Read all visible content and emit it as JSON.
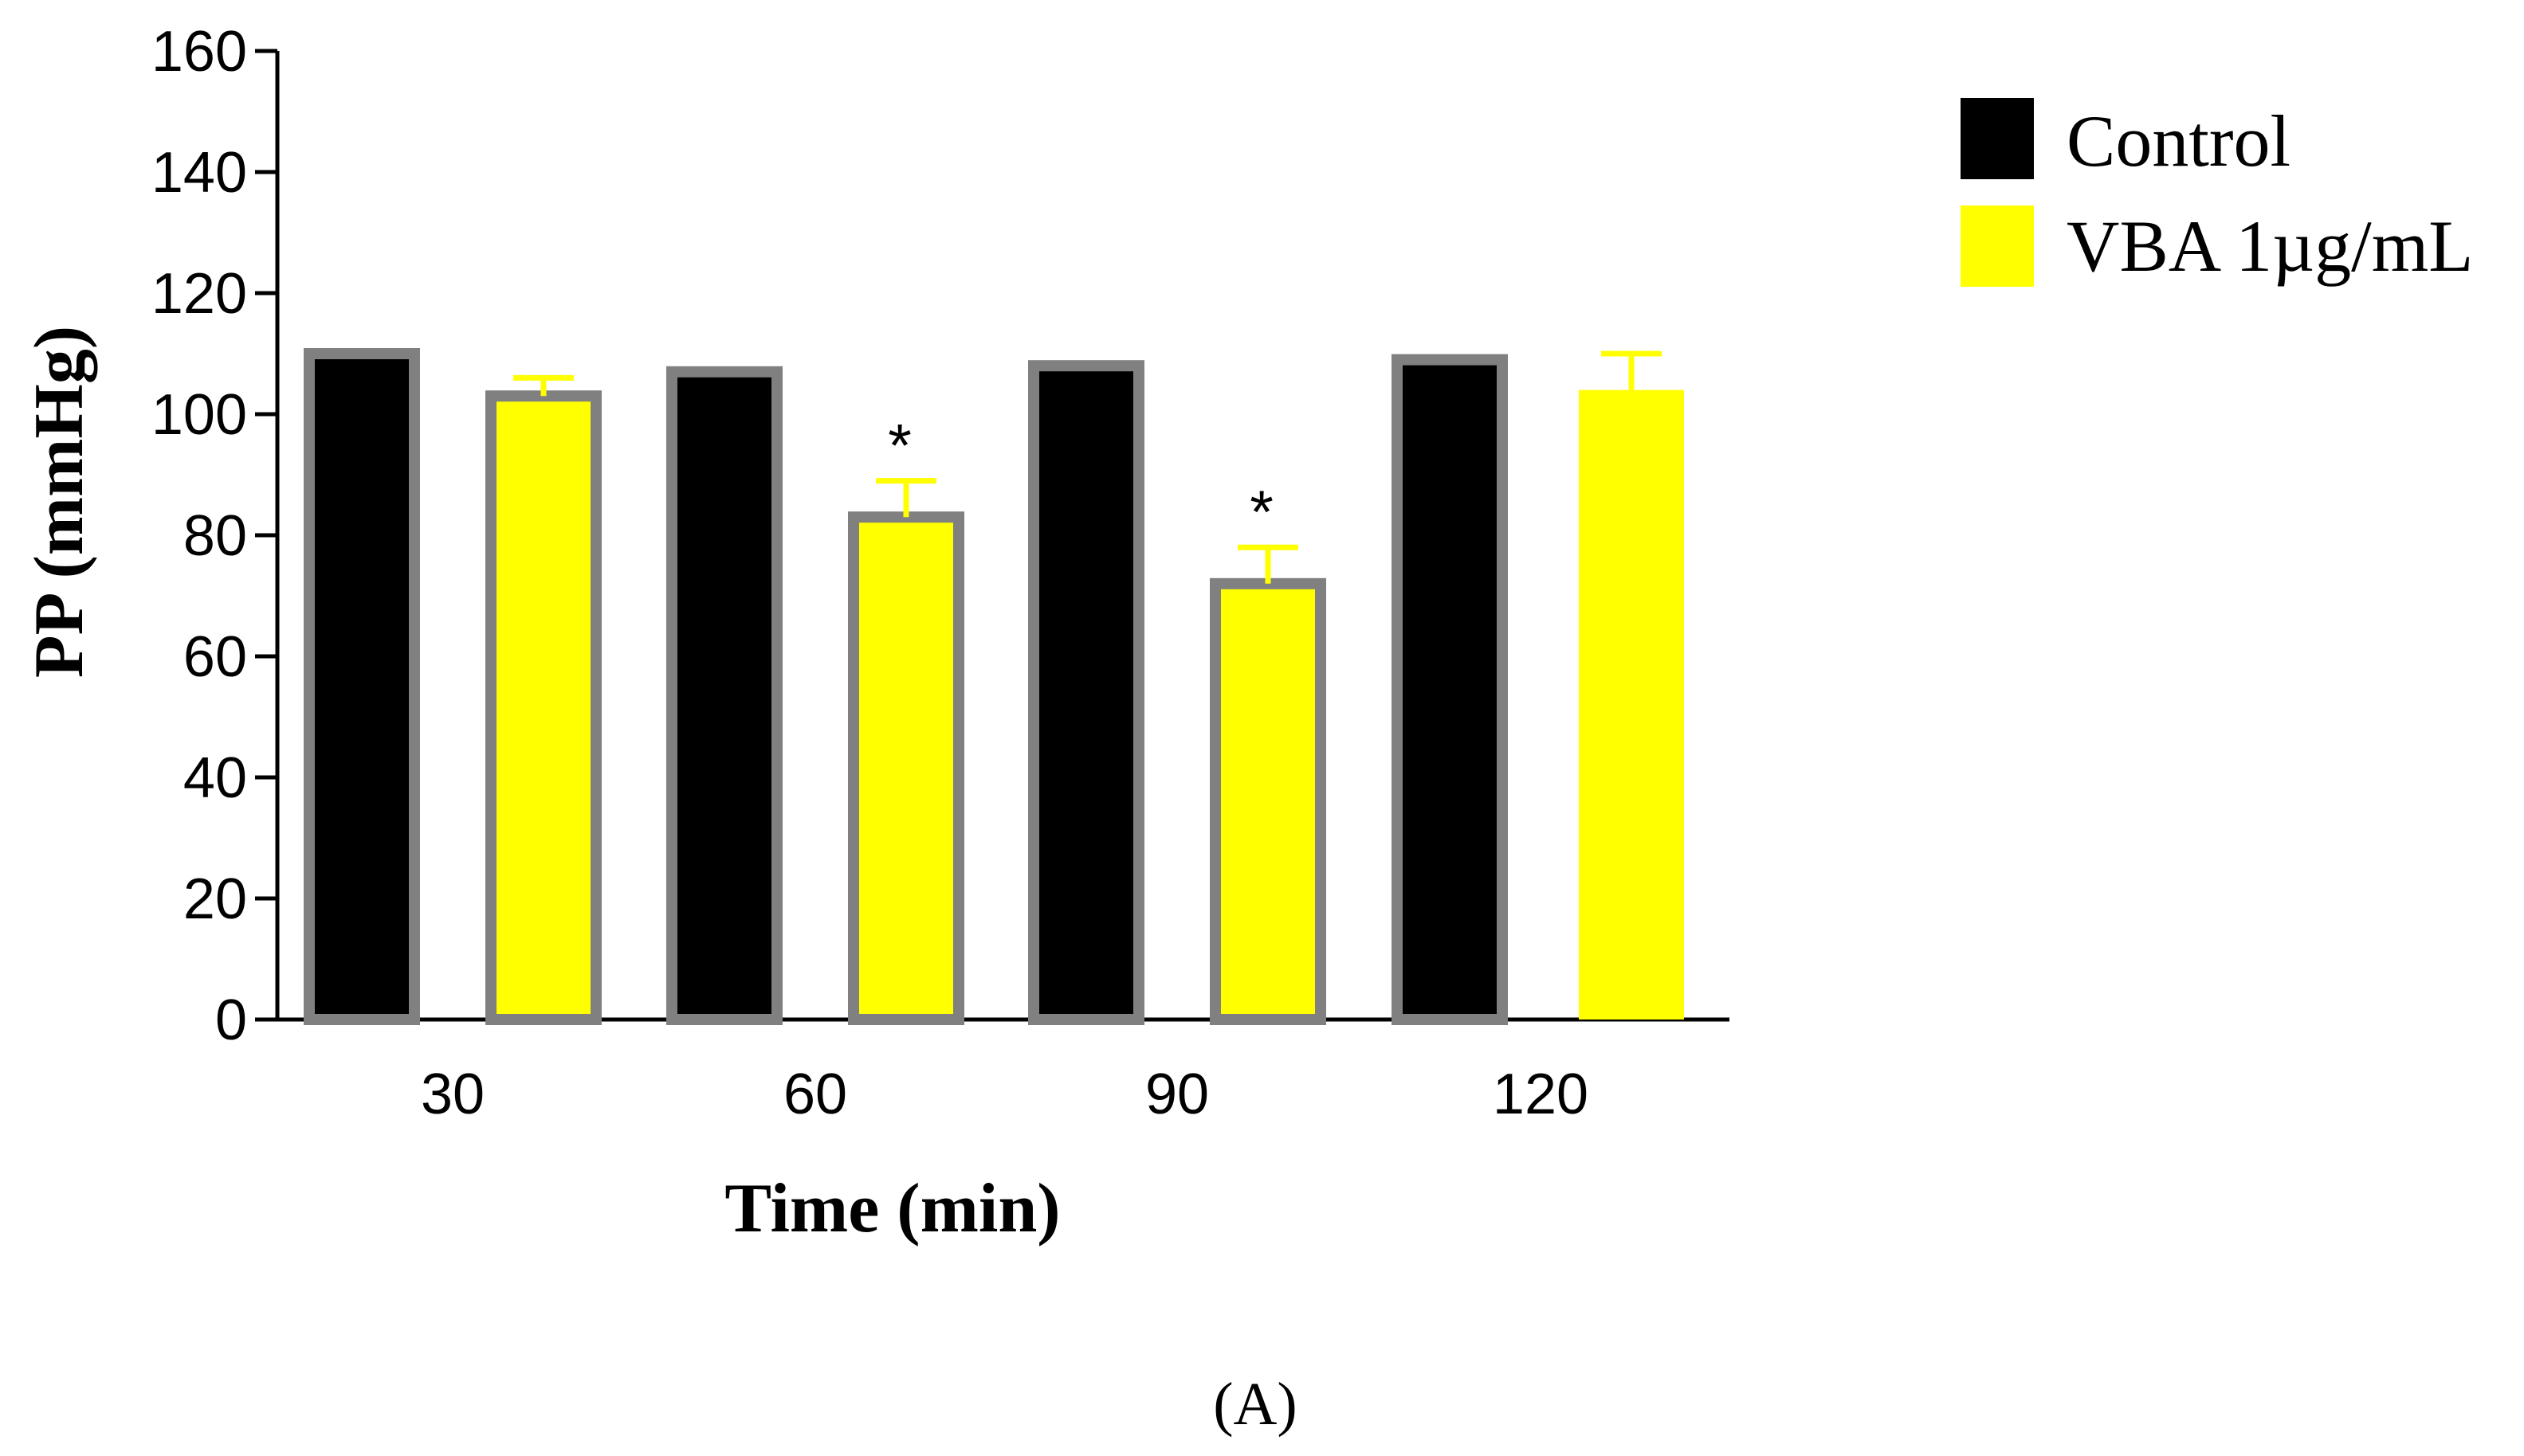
{
  "chart_data": {
    "type": "bar",
    "title": "",
    "xlabel": "Time (min)",
    "ylabel": "PP (mmHg)",
    "categories": [
      "30",
      "60",
      "90",
      "120"
    ],
    "ylim": [
      0,
      160
    ],
    "yticks": [
      "0",
      "20",
      "40",
      "60",
      "80",
      "100",
      "120",
      "140",
      "160"
    ],
    "series": [
      {
        "name": "Control",
        "color": "#000000",
        "values": [
          110,
          107,
          108,
          109
        ],
        "errors": [
          0,
          0,
          0,
          0
        ]
      },
      {
        "name": "VBA 1µg/mL",
        "color": "#ffff00",
        "values": [
          103,
          83,
          72,
          104
        ],
        "errors": [
          3,
          6,
          6,
          6
        ]
      }
    ],
    "annotations": [
      {
        "series": 1,
        "category": 1,
        "text": "*"
      },
      {
        "series": 1,
        "category": 2,
        "text": "*"
      }
    ],
    "legend_position": "top-right",
    "grid": false
  },
  "panel_label": "(A)"
}
